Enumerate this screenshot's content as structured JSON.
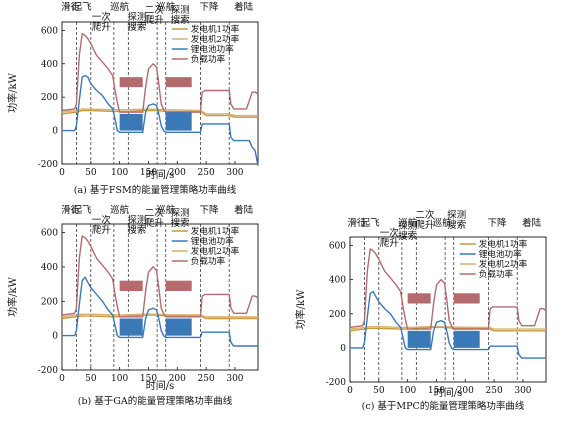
{
  "colors": {
    "engine": "#c89a3c",
    "engine1": "#2f6db4",
    "engine2": "#d8b070",
    "battery": "#3b78b8",
    "load": "#b56b6d"
  },
  "chart_data": [
    {
      "type": "line",
      "title": "(a) 基于FSM的能量管理策略功率曲线",
      "xlabel": "时间/s",
      "ylabel": "功率/kW",
      "xlim": [
        0,
        340
      ],
      "ylim": [
        -200,
        650
      ],
      "xticks": [
        0,
        50,
        100,
        150,
        200,
        250,
        300
      ],
      "yticks": [
        -200,
        0,
        200,
        400,
        600
      ],
      "phase_boundaries": [
        25,
        50,
        90,
        115,
        165,
        180,
        240,
        290
      ],
      "phase_labels": [
        {
          "text": "滑行",
          "x": 15,
          "row": 0
        },
        {
          "text": "起飞",
          "x": 35,
          "row": 0
        },
        {
          "text": "一次",
          "x": 68,
          "row": 1
        },
        {
          "text": "爬升",
          "x": 68,
          "row": 2
        },
        {
          "text": "巡航",
          "x": 100,
          "row": 0
        },
        {
          "text": "探测",
          "x": 130,
          "row": 1
        },
        {
          "text": "搜索",
          "x": 130,
          "row": 2
        },
        {
          "text": "二次",
          "x": 160,
          "row": 0.3
        },
        {
          "text": "爬升",
          "x": 160,
          "row": 1.3
        },
        {
          "text": "巡航",
          "x": 180,
          "row": 0
        },
        {
          "text": "探测",
          "x": 205,
          "row": 0.3
        },
        {
          "text": "搜索",
          "x": 205,
          "row": 1.3
        },
        {
          "text": "下降",
          "x": 255,
          "row": 0
        },
        {
          "text": "着陆",
          "x": 315,
          "row": 0
        }
      ],
      "legend": {
        "placement": "top-right",
        "entries": [
          {
            "name": "发电机1功率",
            "series": 0
          },
          {
            "name": "发电机2功率",
            "series": 1
          },
          {
            "name": "锂电池功率",
            "series": 2
          },
          {
            "name": "负载功率",
            "series": 3
          }
        ]
      },
      "series": [
        {
          "name": "发电机1功率",
          "color": "engine",
          "x": [
            0,
            25,
            35,
            50,
            90,
            100,
            115,
            140,
            165,
            180,
            240,
            250,
            290,
            300,
            335,
            340
          ],
          "y": [
            100,
            110,
            120,
            120,
            115,
            115,
            115,
            120,
            120,
            115,
            115,
            90,
            90,
            80,
            80,
            80
          ]
        },
        {
          "name": "发电机2功率",
          "color": "engine2",
          "x": [
            0,
            25,
            35,
            50,
            90,
            100,
            115,
            140,
            165,
            180,
            240,
            250,
            290,
            300,
            335,
            340
          ],
          "y": [
            110,
            120,
            130,
            128,
            125,
            125,
            125,
            128,
            128,
            125,
            120,
            100,
            100,
            90,
            90,
            90
          ]
        },
        {
          "name": "锂电池功率",
          "color": "battery",
          "x": [
            0,
            22,
            25,
            30,
            35,
            40,
            45,
            50,
            60,
            70,
            80,
            88,
            92,
            96,
            100,
            140,
            145,
            150,
            158,
            164,
            168,
            172,
            176,
            180,
            240,
            243,
            248,
            290,
            293,
            298,
            305,
            325,
            330,
            335,
            340
          ],
          "y": [
            0,
            0,
            30,
            180,
            320,
            330,
            320,
            280,
            240,
            210,
            160,
            130,
            70,
            0,
            -10,
            -10,
            110,
            150,
            160,
            150,
            100,
            30,
            0,
            -10,
            -10,
            40,
            40,
            40,
            -40,
            -60,
            -60,
            -60,
            -100,
            -120,
            -210
          ]
        },
        {
          "name": "负载功率",
          "color": "load",
          "x": [
            0,
            22,
            25,
            30,
            35,
            40,
            45,
            50,
            60,
            70,
            80,
            88,
            92,
            96,
            100,
            140,
            145,
            150,
            158,
            164,
            168,
            172,
            176,
            180,
            240,
            243,
            248,
            290,
            293,
            298,
            320,
            330,
            335,
            340
          ],
          "y": [
            120,
            130,
            160,
            450,
            580,
            570,
            550,
            520,
            450,
            410,
            370,
            330,
            240,
            170,
            110,
            110,
            260,
            370,
            400,
            380,
            280,
            160,
            130,
            110,
            110,
            230,
            240,
            240,
            160,
            130,
            130,
            230,
            230,
            220
          ]
        }
      ],
      "oscillation_bands": [
        {
          "series": 2,
          "from": 100,
          "to": 140,
          "low": 0,
          "high": 100
        },
        {
          "series": 3,
          "from": 100,
          "to": 140,
          "low": 260,
          "high": 320
        },
        {
          "series": 2,
          "from": 180,
          "to": 225,
          "low": 0,
          "high": 110
        },
        {
          "series": 3,
          "from": 180,
          "to": 225,
          "low": 260,
          "high": 320
        }
      ]
    },
    {
      "type": "line",
      "title": "(b) 基于GA的能量管理策略功率曲线",
      "xlabel": "时间/s",
      "ylabel": "功率/kW",
      "xlim": [
        0,
        340
      ],
      "ylim": [
        -200,
        650
      ],
      "xticks": [
        0,
        50,
        100,
        150,
        200,
        250,
        300
      ],
      "yticks": [
        -200,
        0,
        200,
        400,
        600
      ],
      "phase_boundaries": [
        25,
        50,
        90,
        115,
        165,
        180,
        240,
        290
      ],
      "phase_labels": [
        {
          "text": "滑行",
          "x": 15,
          "row": 0
        },
        {
          "text": "起飞",
          "x": 35,
          "row": 0
        },
        {
          "text": "一次",
          "x": 68,
          "row": 1
        },
        {
          "text": "爬升",
          "x": 68,
          "row": 2
        },
        {
          "text": "巡航",
          "x": 100,
          "row": 0
        },
        {
          "text": "探测",
          "x": 130,
          "row": 1
        },
        {
          "text": "搜索",
          "x": 130,
          "row": 2
        },
        {
          "text": "二次",
          "x": 160,
          "row": 0.3
        },
        {
          "text": "爬升",
          "x": 160,
          "row": 1.3
        },
        {
          "text": "巡航",
          "x": 180,
          "row": 0
        },
        {
          "text": "探测",
          "x": 205,
          "row": 0.3
        },
        {
          "text": "搜索",
          "x": 205,
          "row": 1.3
        },
        {
          "text": "下降",
          "x": 255,
          "row": 0
        },
        {
          "text": "着陆",
          "x": 315,
          "row": 0
        }
      ],
      "legend": {
        "placement": "top-right",
        "entries": [
          {
            "name": "发电机1功率",
            "series": 0
          },
          {
            "name": "锂电池功率",
            "series": 2
          },
          {
            "name": "发电机2功率",
            "series": 1
          },
          {
            "name": "负载功率",
            "series": 3
          }
        ]
      },
      "series": [
        {
          "name": "发电机1功率",
          "color": "engine",
          "x": [
            0,
            25,
            35,
            50,
            90,
            100,
            140,
            165,
            180,
            240,
            250,
            290,
            300,
            340
          ],
          "y": [
            100,
            110,
            115,
            115,
            110,
            110,
            120,
            120,
            115,
            115,
            100,
            100,
            100,
            100
          ]
        },
        {
          "name": "发电机2功率",
          "color": "engine2",
          "x": [
            0,
            25,
            35,
            50,
            90,
            100,
            140,
            165,
            180,
            240,
            250,
            290,
            300,
            340
          ],
          "y": [
            110,
            120,
            125,
            125,
            120,
            120,
            125,
            125,
            122,
            120,
            110,
            110,
            110,
            110
          ]
        },
        {
          "name": "锂电池功率",
          "color": "battery",
          "x": [
            0,
            22,
            25,
            30,
            35,
            40,
            45,
            50,
            60,
            70,
            80,
            88,
            92,
            96,
            100,
            140,
            145,
            150,
            158,
            164,
            168,
            172,
            176,
            180,
            240,
            243,
            248,
            290,
            293,
            298,
            320,
            330,
            335,
            340
          ],
          "y": [
            0,
            0,
            30,
            180,
            320,
            340,
            310,
            280,
            240,
            200,
            150,
            120,
            60,
            0,
            -10,
            -10,
            100,
            150,
            160,
            150,
            100,
            30,
            0,
            -10,
            -10,
            20,
            20,
            20,
            -40,
            -60,
            -60,
            -60,
            -60,
            -60
          ]
        },
        {
          "name": "负载功率",
          "color": "load",
          "x": [
            0,
            22,
            25,
            30,
            35,
            40,
            45,
            50,
            60,
            70,
            80,
            88,
            92,
            96,
            100,
            140,
            145,
            150,
            158,
            164,
            168,
            172,
            176,
            180,
            240,
            243,
            248,
            290,
            293,
            298,
            320,
            330,
            335,
            340
          ],
          "y": [
            120,
            130,
            160,
            450,
            580,
            570,
            550,
            520,
            450,
            410,
            370,
            330,
            240,
            170,
            110,
            110,
            260,
            370,
            400,
            380,
            280,
            160,
            130,
            110,
            110,
            230,
            240,
            240,
            160,
            130,
            130,
            230,
            230,
            220
          ]
        }
      ],
      "oscillation_bands": [
        {
          "series": 2,
          "from": 100,
          "to": 140,
          "low": 0,
          "high": 100
        },
        {
          "series": 3,
          "from": 100,
          "to": 140,
          "low": 260,
          "high": 320
        },
        {
          "series": 2,
          "from": 180,
          "to": 225,
          "low": 0,
          "high": 100
        },
        {
          "series": 3,
          "from": 180,
          "to": 225,
          "low": 260,
          "high": 320
        }
      ]
    },
    {
      "type": "line",
      "title": "(c) 基于MPC的能量管理策略功率曲线",
      "xlabel": "时间/s",
      "ylabel": "功率/kW",
      "xlim": [
        0,
        340
      ],
      "ylim": [
        -200,
        650
      ],
      "xticks": [
        0,
        50,
        100,
        150,
        200,
        250,
        300
      ],
      "yticks": [
        -200,
        0,
        200,
        400,
        600
      ],
      "phase_boundaries": [
        25,
        50,
        90,
        115,
        165,
        180,
        240,
        290
      ],
      "phase_labels": [
        {
          "text": "滑行",
          "x": 12,
          "row": 0
        },
        {
          "text": "起飞",
          "x": 35,
          "row": 0
        },
        {
          "text": "一次",
          "x": 68,
          "row": 1
        },
        {
          "text": "爬升",
          "x": 68,
          "row": 2
        },
        {
          "text": "探测",
          "x": 100,
          "row": 0.3
        },
        {
          "text": "搜索",
          "x": 100,
          "row": 1.3
        },
        {
          "text": "二次",
          "x": 130,
          "row": -0.8
        },
        {
          "text": "爬升",
          "x": 130,
          "row": 0.2
        },
        {
          "text": "巡航",
          "x": 160,
          "row": 0
        },
        {
          "text": "巡航",
          "x": 100,
          "row": 0
        },
        {
          "text": "探测",
          "x": 185,
          "row": -0.8
        },
        {
          "text": "搜索",
          "x": 185,
          "row": 0.2
        },
        {
          "text": "下降",
          "x": 255,
          "row": 0
        },
        {
          "text": "着陆",
          "x": 315,
          "row": 0
        }
      ],
      "legend": {
        "placement": "top-right",
        "entries": [
          {
            "name": "发电机1功率",
            "series": 0
          },
          {
            "name": "锂电池功率",
            "series": 2
          },
          {
            "name": "发电机2功率",
            "series": 1
          },
          {
            "name": "负载功率",
            "series": 3
          }
        ]
      },
      "series": [
        {
          "name": "发电机1功率",
          "color": "engine",
          "x": [
            0,
            25,
            35,
            50,
            90,
            100,
            140,
            165,
            180,
            240,
            250,
            290,
            300,
            340
          ],
          "y": [
            100,
            110,
            115,
            115,
            110,
            110,
            120,
            120,
            115,
            115,
            100,
            100,
            100,
            100
          ]
        },
        {
          "name": "发电机2功率",
          "color": "engine2",
          "x": [
            0,
            25,
            35,
            50,
            90,
            100,
            140,
            165,
            180,
            240,
            250,
            290,
            300,
            340
          ],
          "y": [
            110,
            120,
            125,
            125,
            120,
            120,
            125,
            125,
            122,
            120,
            110,
            110,
            110,
            110
          ]
        },
        {
          "name": "锂电池功率",
          "color": "battery",
          "x": [
            0,
            22,
            25,
            30,
            35,
            40,
            45,
            50,
            60,
            70,
            80,
            88,
            92,
            96,
            100,
            140,
            145,
            150,
            158,
            164,
            168,
            172,
            176,
            180,
            240,
            243,
            248,
            290,
            293,
            298,
            320,
            330,
            335,
            340
          ],
          "y": [
            0,
            0,
            30,
            180,
            320,
            330,
            300,
            270,
            230,
            200,
            150,
            120,
            60,
            0,
            -10,
            -10,
            100,
            150,
            160,
            150,
            100,
            30,
            0,
            -10,
            -10,
            10,
            10,
            10,
            -40,
            -60,
            -60,
            -60,
            -60,
            -60
          ]
        },
        {
          "name": "负载功率",
          "color": "load",
          "x": [
            0,
            22,
            25,
            30,
            35,
            40,
            45,
            50,
            60,
            70,
            80,
            88,
            92,
            96,
            100,
            140,
            145,
            150,
            158,
            164,
            168,
            172,
            176,
            180,
            240,
            243,
            248,
            290,
            293,
            298,
            320,
            330,
            335,
            340
          ],
          "y": [
            120,
            130,
            160,
            450,
            580,
            570,
            550,
            520,
            450,
            410,
            370,
            330,
            240,
            170,
            110,
            110,
            260,
            370,
            400,
            380,
            280,
            160,
            130,
            110,
            110,
            230,
            240,
            240,
            160,
            130,
            130,
            230,
            230,
            220
          ]
        }
      ],
      "oscillation_bands": [
        {
          "series": 2,
          "from": 100,
          "to": 140,
          "low": 0,
          "high": 100
        },
        {
          "series": 3,
          "from": 100,
          "to": 140,
          "low": 260,
          "high": 320
        },
        {
          "series": 2,
          "from": 180,
          "to": 225,
          "low": 0,
          "high": 100
        },
        {
          "series": 3,
          "from": 180,
          "to": 225,
          "low": 260,
          "high": 320
        }
      ]
    }
  ]
}
